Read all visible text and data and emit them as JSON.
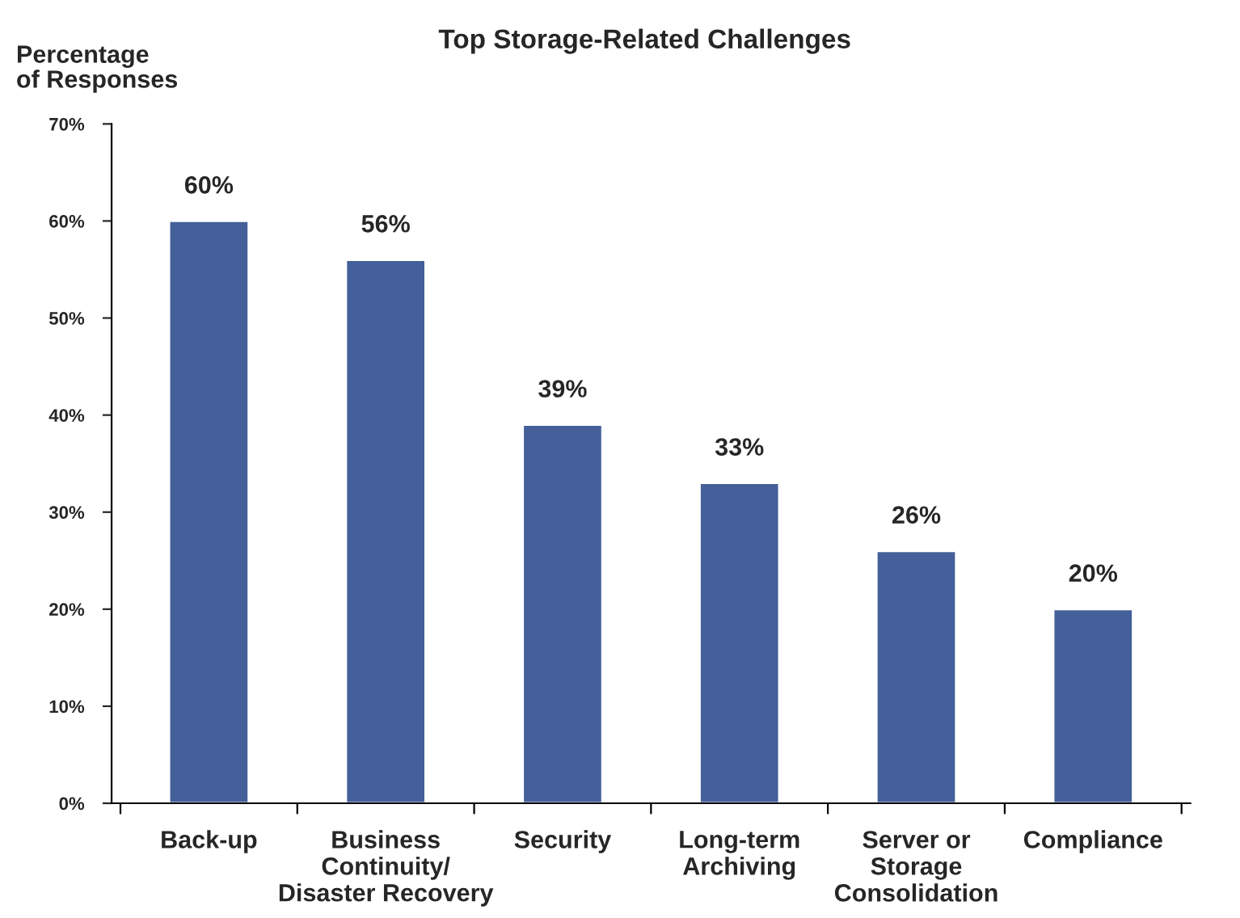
{
  "chart_data": {
    "type": "bar",
    "title": "Top Storage-Related Challenges",
    "ylabel": "Percentage\nof Responses",
    "categories": [
      "Back-up",
      "Business\nContinuity/\nDisaster Recovery",
      "Security",
      "Long-term\nArchiving",
      "Server or\nStorage\nConsolidation",
      "Compliance"
    ],
    "values": [
      60,
      56,
      39,
      33,
      26,
      20
    ],
    "value_labels": [
      "60%",
      "56%",
      "39%",
      "33%",
      "26%",
      "20%"
    ],
    "color": "#445f99",
    "ylim": [
      0,
      70
    ],
    "yticks": [
      {
        "value": 0,
        "label": "0%"
      },
      {
        "value": 10,
        "label": "10%"
      },
      {
        "value": 20,
        "label": "20%"
      },
      {
        "value": 30,
        "label": "30%"
      },
      {
        "value": 40,
        "label": "40%"
      },
      {
        "value": 50,
        "label": "50%"
      },
      {
        "value": 60,
        "label": "60%"
      },
      {
        "value": 70,
        "label": "70%"
      }
    ],
    "grid": false
  }
}
